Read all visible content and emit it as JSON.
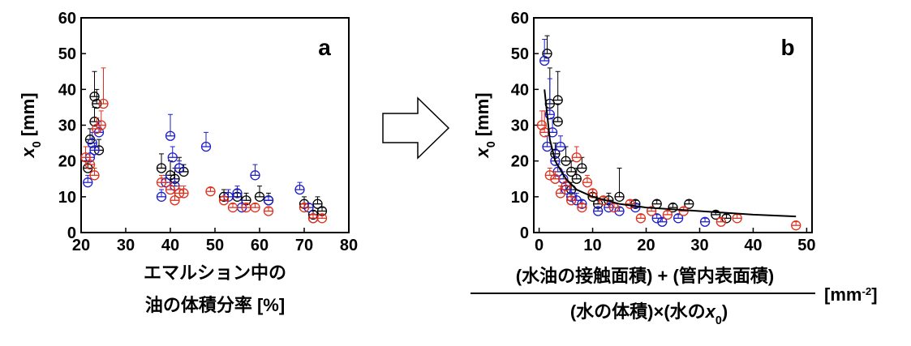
{
  "chart_data": [
    {
      "type": "scatter",
      "panel_label": "a",
      "ylabel": [
        "x",
        "0",
        " [mm]"
      ],
      "xlabel": [
        "エマルション中の",
        "油の体積分率 [%]"
      ],
      "xlim": [
        20,
        80
      ],
      "ylim": [
        0,
        60
      ],
      "xticks": [
        20,
        30,
        40,
        50,
        60,
        70,
        80
      ],
      "yticks": [
        0,
        10,
        20,
        30,
        40,
        50,
        60
      ],
      "series": [
        {
          "color": "#000000",
          "style": "points",
          "x": [
            21.5,
            22,
            23,
            23,
            23.5,
            24,
            38,
            40,
            41,
            42,
            43,
            52,
            55,
            57,
            60,
            62,
            70,
            72,
            73,
            74
          ],
          "values": [
            18,
            26,
            31,
            38,
            36,
            23,
            18,
            16,
            15,
            18,
            17,
            10,
            10,
            9,
            10,
            9,
            8,
            5,
            8,
            6
          ],
          "errors": [
            2,
            3,
            4,
            7,
            4,
            3,
            4,
            4,
            3,
            3,
            2,
            2,
            2,
            2,
            3,
            2,
            2,
            1,
            2,
            1
          ]
        },
        {
          "color": "#1f1fc8",
          "style": "points",
          "x": [
            21.5,
            22,
            22.5,
            23,
            24,
            38,
            39,
            40,
            40.5,
            41,
            42,
            48,
            53,
            55,
            56,
            59,
            62,
            69,
            71,
            72
          ],
          "values": [
            14,
            21,
            25,
            23,
            28,
            10,
            14,
            27,
            21,
            13,
            18,
            24,
            10,
            11,
            7,
            16,
            9,
            12,
            7,
            4
          ],
          "errors": [
            2,
            3,
            3,
            2,
            3,
            2,
            2,
            6,
            3,
            2,
            2,
            4,
            2,
            2,
            2,
            3,
            1,
            2,
            1,
            1
          ]
        },
        {
          "color": "#e0301e",
          "style": "points",
          "x": [
            21,
            22,
            23,
            23.5,
            24.5,
            25,
            38,
            40,
            41,
            42,
            43,
            49,
            52,
            54,
            57,
            59,
            62,
            70,
            72,
            74
          ],
          "values": [
            21,
            19,
            16,
            29,
            30,
            36,
            14,
            12,
            9,
            11,
            11,
            11.5,
            9,
            7,
            7,
            7,
            6,
            7,
            4,
            4
          ],
          "errors": [
            3,
            2,
            2,
            3,
            4,
            10,
            2,
            2,
            2,
            2,
            2,
            1,
            1,
            1,
            1,
            1,
            1,
            1,
            1,
            1
          ]
        }
      ]
    },
    {
      "type": "scatter",
      "panel_label": "b",
      "ylabel": [
        "x",
        "0",
        " [mm]"
      ],
      "xlabel": {
        "numerator": "(水油の接触面積) + (管内表面積)",
        "denominator": [
          "(水の体積)×(水の",
          "x",
          "0",
          ")"
        ],
        "unit": [
          "[mm",
          "-2",
          "]"
        ]
      },
      "xlim": [
        -1,
        51
      ],
      "ylim": [
        0,
        60
      ],
      "xticks": [
        0,
        10,
        20,
        30,
        40,
        50
      ],
      "yticks": [
        0,
        10,
        20,
        30,
        40,
        50,
        60
      ],
      "series": [
        {
          "color": "#000000",
          "style": "points",
          "x": [
            1.5,
            2,
            3.5,
            3.5,
            5,
            6,
            7,
            8,
            10,
            13,
            15,
            18,
            22,
            25,
            28,
            33,
            35,
            3,
            6,
            11
          ],
          "values": [
            50,
            36,
            37,
            31,
            20,
            17,
            15,
            18,
            10,
            9,
            10,
            8,
            8,
            7,
            8,
            5,
            4,
            22,
            12,
            8
          ],
          "errors": [
            5,
            10,
            8,
            5,
            4,
            3,
            3,
            3,
            2,
            2,
            8,
            1,
            1,
            1,
            1,
            1,
            1,
            3,
            2,
            1
          ]
        },
        {
          "color": "#1f1fc8",
          "style": "points",
          "x": [
            1,
            1.5,
            2,
            2.5,
            3,
            3.5,
            4.5,
            5,
            6,
            7,
            8,
            11,
            13,
            15,
            18,
            22,
            23,
            26,
            31,
            4
          ],
          "values": [
            48,
            24,
            33,
            28,
            20,
            17,
            15,
            12,
            10,
            9,
            8,
            6,
            7,
            6,
            7,
            4,
            3,
            4,
            3,
            24
          ],
          "errors": [
            6,
            3,
            10,
            4,
            3,
            2,
            2,
            2,
            2,
            2,
            1,
            1,
            1,
            1,
            1,
            1,
            1,
            1,
            1,
            3
          ]
        },
        {
          "color": "#e0301e",
          "style": "points",
          "x": [
            0.5,
            1,
            2,
            3,
            4,
            5,
            6,
            7,
            8,
            9,
            10,
            12,
            14,
            17,
            19,
            21,
            24,
            27,
            34,
            37,
            48
          ],
          "values": [
            30,
            28,
            16,
            15,
            11,
            13,
            9,
            21,
            7,
            14,
            11,
            9,
            7,
            8,
            4,
            6,
            5,
            6,
            3,
            4,
            2
          ],
          "errors": [
            4,
            6,
            2,
            2,
            2,
            2,
            1,
            3,
            1,
            2,
            1,
            1,
            1,
            1,
            1,
            1,
            1,
            1,
            1,
            1,
            1
          ]
        },
        {
          "color": "#000000",
          "style": "line",
          "x": [
            1,
            2,
            3,
            5,
            7,
            10,
            15,
            20,
            30,
            40,
            48
          ],
          "values": [
            40,
            26,
            20,
            15,
            12,
            10,
            8,
            7,
            6,
            5,
            4.5
          ]
        }
      ]
    }
  ]
}
